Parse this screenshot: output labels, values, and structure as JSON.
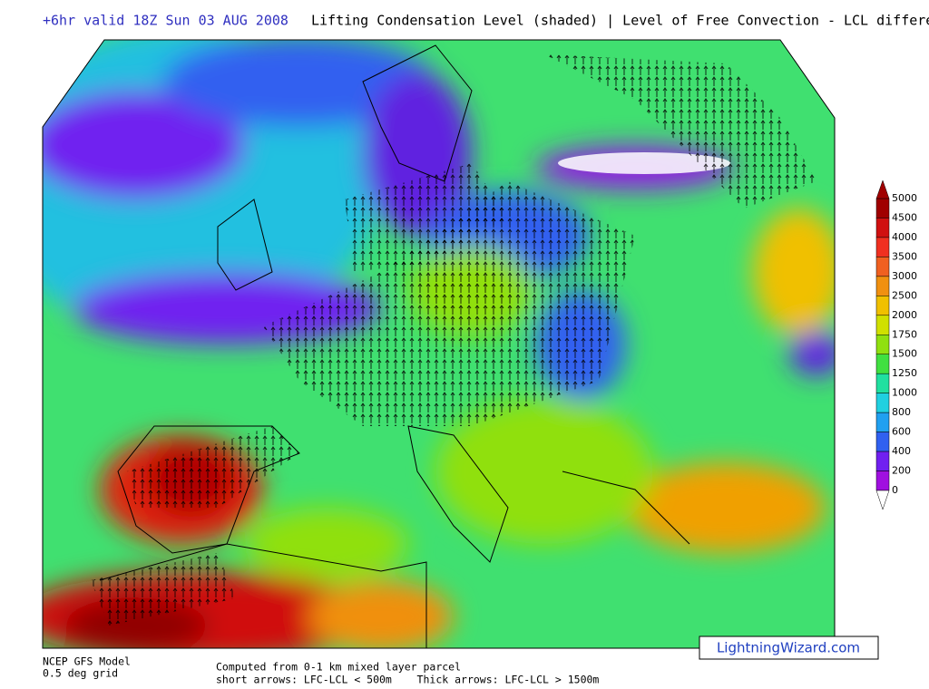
{
  "header": {
    "valid": "+6hr valid 18Z Sun 03 AUG 2008",
    "title": "Lifting Condensation Level (shaded) | Level of Free Convection - LCL difference"
  },
  "colorbar": {
    "labels": [
      "5000",
      "4500",
      "4000",
      "3500",
      "3000",
      "2500",
      "2000",
      "1750",
      "1500",
      "1250",
      "1000",
      "800",
      "600",
      "400",
      "200",
      "0"
    ],
    "colors": [
      "#a00000",
      "#d01010",
      "#f03020",
      "#f06020",
      "#f09010",
      "#f0c000",
      "#d0e000",
      "#90e010",
      "#40e040",
      "#20e0a0",
      "#20d0e0",
      "#20a0f0",
      "#3060f0",
      "#7020f0",
      "#a010e0"
    ]
  },
  "footer": {
    "model": "NCEP GFS Model",
    "grid": "0.5 deg grid",
    "computed": "Computed from 0-1 km mixed layer parcel",
    "arrows": "short arrows: LFC-LCL < 500m    Thick arrows: LFC-LCL > 1500m",
    "brand": "LightningWizard.com"
  }
}
